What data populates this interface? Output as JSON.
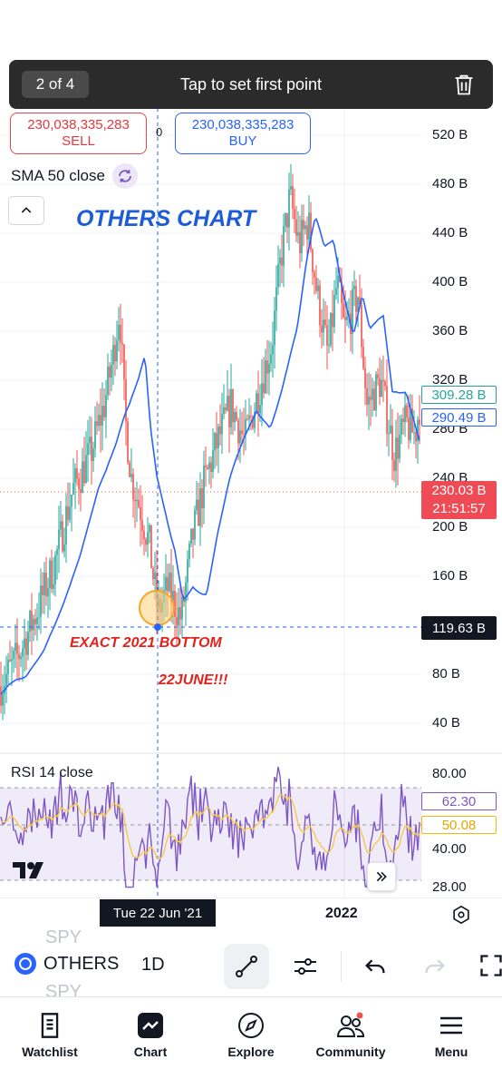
{
  "toast": {
    "counter": "2 of 4",
    "message": "Tap to set first point",
    "icon": "trash-icon"
  },
  "trade": {
    "sell_value": "230,038,335,283",
    "sell_label": "SELL",
    "buy_value": "230,038,335,283",
    "buy_label": "BUY",
    "spread": "0"
  },
  "indicator": {
    "sma_label": "SMA 50 close",
    "rsi_label": "RSI 14 close"
  },
  "annotations": {
    "title": "OTHERS CHART",
    "bottom_note": "EXACT 2021 BOTTOM",
    "date_note": "22JUNE!!!"
  },
  "price_axis": [
    "520 B",
    "480 B",
    "440 B",
    "400 B",
    "360 B",
    "320 B",
    "280 B",
    "240 B",
    "200 B",
    "160 B",
    "80 B",
    "40 B"
  ],
  "price_tags": {
    "sma_high": "309.28 B",
    "sma_low": "290.49 B",
    "last_price": "230.03 B",
    "countdown": "21:51:57",
    "crosshair": "119.63 B"
  },
  "rsi_axis": [
    "80.00",
    "40.00",
    "28.00"
  ],
  "rsi_tags": {
    "rsi": "62.30",
    "rsi_ma": "50.08"
  },
  "time_axis": {
    "crosshair_date": "Tue 22 Jun '21",
    "year_label": "2022"
  },
  "toolbar": {
    "symbol": "OTHERS",
    "interval": "1D",
    "ghost_symbol": "SPY"
  },
  "nav": [
    {
      "label": "Watchlist",
      "icon": "watchlist-icon"
    },
    {
      "label": "Chart",
      "icon": "chart-icon"
    },
    {
      "label": "Explore",
      "icon": "compass-icon"
    },
    {
      "label": "Community",
      "icon": "community-icon"
    },
    {
      "label": "Menu",
      "icon": "menu-icon"
    }
  ],
  "colors": {
    "up": "#26a69a",
    "down": "#ef5350",
    "sma": "#2962ff",
    "rsi": "#7e57c2",
    "rsi_ma": "#f7c948"
  },
  "chart_data": {
    "type": "candlestick",
    "y_unit": "B",
    "ylim": [
      0,
      540
    ],
    "crosshair": {
      "date": "Tue 22 Jun '21",
      "price": 119.63
    },
    "last_price": 230.03,
    "sma_50_last": [
      309.28,
      290.49
    ],
    "rsi": {
      "last": 62.3,
      "ma_last": 50.08,
      "band": [
        30,
        70
      ]
    }
  }
}
